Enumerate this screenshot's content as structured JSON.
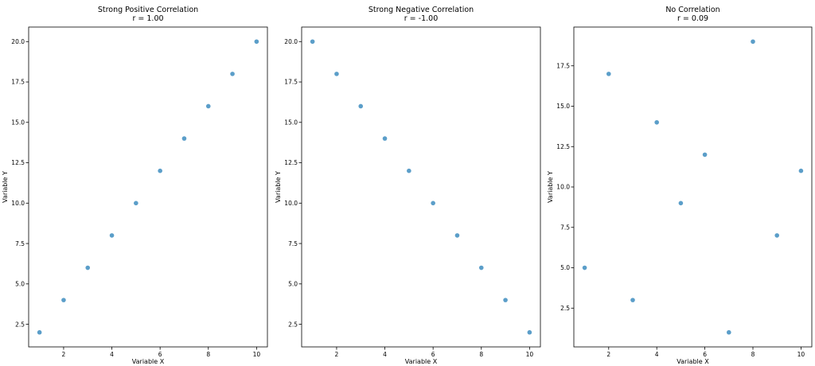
{
  "chart_data": [
    {
      "type": "scatter",
      "title": "Strong Positive Correlation",
      "subtitle": "r = 1.00",
      "xlabel": "Variable X",
      "ylabel": "Variable Y",
      "x": [
        1,
        2,
        3,
        4,
        5,
        6,
        7,
        8,
        9,
        10
      ],
      "y": [
        2,
        4,
        6,
        8,
        10,
        12,
        14,
        16,
        18,
        20
      ],
      "xlim": [
        0.55,
        10.45
      ],
      "ylim": [
        1.1,
        20.9
      ],
      "xticks": [
        2,
        4,
        6,
        8,
        10
      ],
      "xtick_labels": [
        "2",
        "4",
        "6",
        "8",
        "10"
      ],
      "yticks": [
        2.5,
        5,
        7.5,
        10,
        12.5,
        15,
        17.5,
        20
      ],
      "ytick_labels": [
        "2.5",
        "5.0",
        "7.5",
        "10.0",
        "12.5",
        "15.0",
        "17.5",
        "20.0"
      ],
      "color": "#5b9ec9",
      "grid": false
    },
    {
      "type": "scatter",
      "title": "Strong Negative Correlation",
      "subtitle": "r = -1.00",
      "xlabel": "Variable X",
      "ylabel": "Variable Y",
      "x": [
        1,
        2,
        3,
        4,
        5,
        6,
        7,
        8,
        9,
        10
      ],
      "y": [
        20,
        18,
        16,
        14,
        12,
        10,
        8,
        6,
        4,
        2
      ],
      "xlim": [
        0.55,
        10.45
      ],
      "ylim": [
        1.1,
        20.9
      ],
      "xticks": [
        2,
        4,
        6,
        8,
        10
      ],
      "xtick_labels": [
        "2",
        "4",
        "6",
        "8",
        "10"
      ],
      "yticks": [
        2.5,
        5,
        7.5,
        10,
        12.5,
        15,
        17.5,
        20
      ],
      "ytick_labels": [
        "2.5",
        "5.0",
        "7.5",
        "10.0",
        "12.5",
        "15.0",
        "17.5",
        "20.0"
      ],
      "color": "#5b9ec9",
      "grid": false
    },
    {
      "type": "scatter",
      "title": "No Correlation",
      "subtitle": "r = 0.09",
      "xlabel": "Variable X",
      "ylabel": "Variable Y",
      "x": [
        1,
        2,
        3,
        4,
        5,
        6,
        7,
        8,
        9,
        10
      ],
      "y": [
        5,
        17,
        3,
        14,
        9,
        12,
        1,
        19,
        7,
        11
      ],
      "xlim": [
        0.55,
        10.45
      ],
      "ylim": [
        0.1,
        19.9
      ],
      "xticks": [
        2,
        4,
        6,
        8,
        10
      ],
      "xtick_labels": [
        "2",
        "4",
        "6",
        "8",
        "10"
      ],
      "yticks": [
        2.5,
        5,
        7.5,
        10,
        12.5,
        15,
        17.5
      ],
      "ytick_labels": [
        "2.5",
        "5.0",
        "7.5",
        "10.0",
        "12.5",
        "15.0",
        "17.5"
      ],
      "color": "#5b9ec9",
      "grid": false
    }
  ]
}
